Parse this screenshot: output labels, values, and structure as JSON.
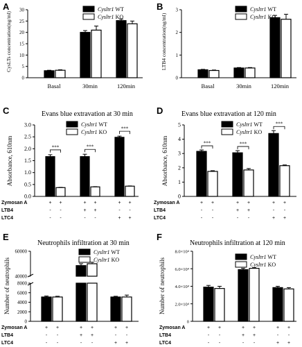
{
  "chart_data": [
    {
      "panel": "A",
      "type": "bar",
      "title": "",
      "ylabel": "CysLTs concentration(ng/ml)",
      "ylim": [
        0,
        30
      ],
      "yticks": [
        "0",
        "5",
        "10",
        "15",
        "20",
        "25",
        "30"
      ],
      "categories": [
        "Basal",
        "30min",
        "120min"
      ],
      "series": [
        {
          "name": "Cysltr1 WT",
          "values": [
            3.1,
            20.0,
            25.2
          ],
          "errors": [
            0.2,
            0.8,
            0.7
          ]
        },
        {
          "name": "Cysltr1 KO",
          "values": [
            3.3,
            21.0,
            23.8
          ],
          "errors": [
            0.2,
            1.8,
            1.2
          ]
        }
      ],
      "legend": [
        "Cysltr1 WT",
        "Cysltr1 KO"
      ]
    },
    {
      "panel": "B",
      "type": "bar",
      "title": "",
      "ylabel": "LTB4 concentration(ng/ml)",
      "ylim": [
        0,
        3
      ],
      "yticks": [
        "0",
        "1",
        "2",
        "3"
      ],
      "categories": [
        "Basal",
        "30min",
        "120min"
      ],
      "series": [
        {
          "name": "Cysltr1 WT",
          "values": [
            0.35,
            0.43,
            2.65
          ],
          "errors": [
            0.02,
            0.02,
            0.1
          ]
        },
        {
          "name": "Cysltr1 KO",
          "values": [
            0.32,
            0.43,
            2.58
          ],
          "errors": [
            0.02,
            0.02,
            0.22
          ]
        }
      ],
      "legend": [
        "Cysltr1 WT",
        "Cysltr1 KO"
      ]
    },
    {
      "panel": "C",
      "type": "bar",
      "title": "Evans blue extravation at 30 min",
      "ylabel": "Absorbance, 610nm",
      "ylim": [
        0,
        3
      ],
      "yticks": [
        "0.0",
        "0.5",
        "1.0",
        "1.5",
        "2.0",
        "2.5",
        "3.0"
      ],
      "group_count": 3,
      "series": [
        {
          "name": "Cysltr1 WT",
          "values": [
            1.67,
            1.67,
            2.48
          ],
          "errors": [
            0.08,
            0.1,
            0.05
          ]
        },
        {
          "name": "Cysltr1 KO",
          "values": [
            0.37,
            0.4,
            0.43
          ],
          "errors": [
            0.01,
            0.01,
            0.01
          ]
        }
      ],
      "significance": [
        "***",
        "***",
        "***"
      ],
      "legend": [
        "Cysltr1 WT",
        "Cysltr1 KO"
      ]
    },
    {
      "panel": "D",
      "type": "bar",
      "title": "Evans blue extravation at 120 min",
      "ylabel": "Absorbance, 610nm",
      "ylim": [
        0,
        5
      ],
      "yticks": [
        "0",
        "1",
        "2",
        "3",
        "4",
        "5"
      ],
      "group_count": 3,
      "series": [
        {
          "name": "Cysltr1 WT",
          "values": [
            3.15,
            3.05,
            4.4
          ],
          "errors": [
            0.1,
            0.15,
            0.2
          ]
        },
        {
          "name": "Cysltr1 KO",
          "values": [
            1.75,
            1.85,
            2.15
          ],
          "errors": [
            0.05,
            0.1,
            0.05
          ]
        }
      ],
      "significance": [
        "***",
        "***",
        "***"
      ],
      "legend": [
        "Cysltr1 WT",
        "Cysltr1 KO"
      ]
    },
    {
      "panel": "E",
      "type": "bar",
      "title": "Neutrophils infiltration at 30 min",
      "ylabel": "Number of neutrophils",
      "yaxis_break": {
        "lower": [
          0,
          8000
        ],
        "upper": [
          40000,
          60000
        ]
      },
      "yticks": [
        "0",
        "2000",
        "4000",
        "6000",
        "8000",
        "40000",
        "60000"
      ],
      "group_count": 3,
      "series": [
        {
          "name": "Cysltr1 WT",
          "values": [
            5100,
            48500,
            5100
          ],
          "errors": [
            200,
            1500,
            150
          ]
        },
        {
          "name": "Cysltr1 KO",
          "values": [
            5100,
            50000,
            5100
          ],
          "errors": [
            150,
            1200,
            400
          ]
        }
      ],
      "legend": [
        "Cysltr1 WT",
        "Cysltr1 KO"
      ]
    },
    {
      "panel": "F",
      "type": "bar",
      "title": "Neutrophils infiltration at 120 min",
      "ylabel": "Number of neutrophils",
      "ylim": [
        0,
        80000
      ],
      "yticks": [
        "0",
        "2.0×10⁴",
        "4.0×10⁴",
        "6.0×10⁴",
        "8.0×10⁴"
      ],
      "group_count": 3,
      "series": [
        {
          "name": "Cysltr1 WT",
          "values": [
            39000,
            59000,
            38500
          ],
          "errors": [
            2000,
            1500,
            1500
          ]
        },
        {
          "name": "Cysltr1 KO",
          "values": [
            37500,
            60500,
            37000
          ],
          "errors": [
            2500,
            800,
            1500
          ]
        }
      ],
      "legend": [
        "Cysltr1 WT",
        "Cysltr1 KO"
      ]
    }
  ],
  "treatment_table": {
    "row_labels": [
      "Zymosan A",
      "LTB4",
      "LTC4"
    ],
    "columns": [
      [
        "+",
        "-",
        "-"
      ],
      [
        "+",
        "-",
        "-"
      ],
      [
        "+",
        "+",
        "-"
      ],
      [
        "+",
        "+",
        "-"
      ],
      [
        "+",
        "-",
        "+"
      ],
      [
        "+",
        "-",
        "+"
      ]
    ]
  },
  "legend_labels": {
    "gene": "Cysltr1",
    "wt": "WT",
    "ko": "KO"
  },
  "colors": {
    "wt": "#000000",
    "ko": "#ffffff",
    "stroke": "#000000"
  }
}
